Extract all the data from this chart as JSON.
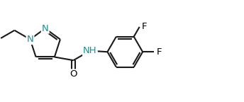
{
  "background_color": "#ffffff",
  "bond_color": "#1a1a1a",
  "atom_color_N": "#1a8f8f",
  "atom_color_O": "#1a1a1a",
  "atom_color_F": "#1a1a1a",
  "line_width": 1.5,
  "font_size_atoms": 9.5,
  "figsize": [
    3.44,
    1.44
  ],
  "dpi": 100,
  "xlim": [
    0,
    10.8
  ],
  "ylim": [
    0,
    4.5
  ]
}
